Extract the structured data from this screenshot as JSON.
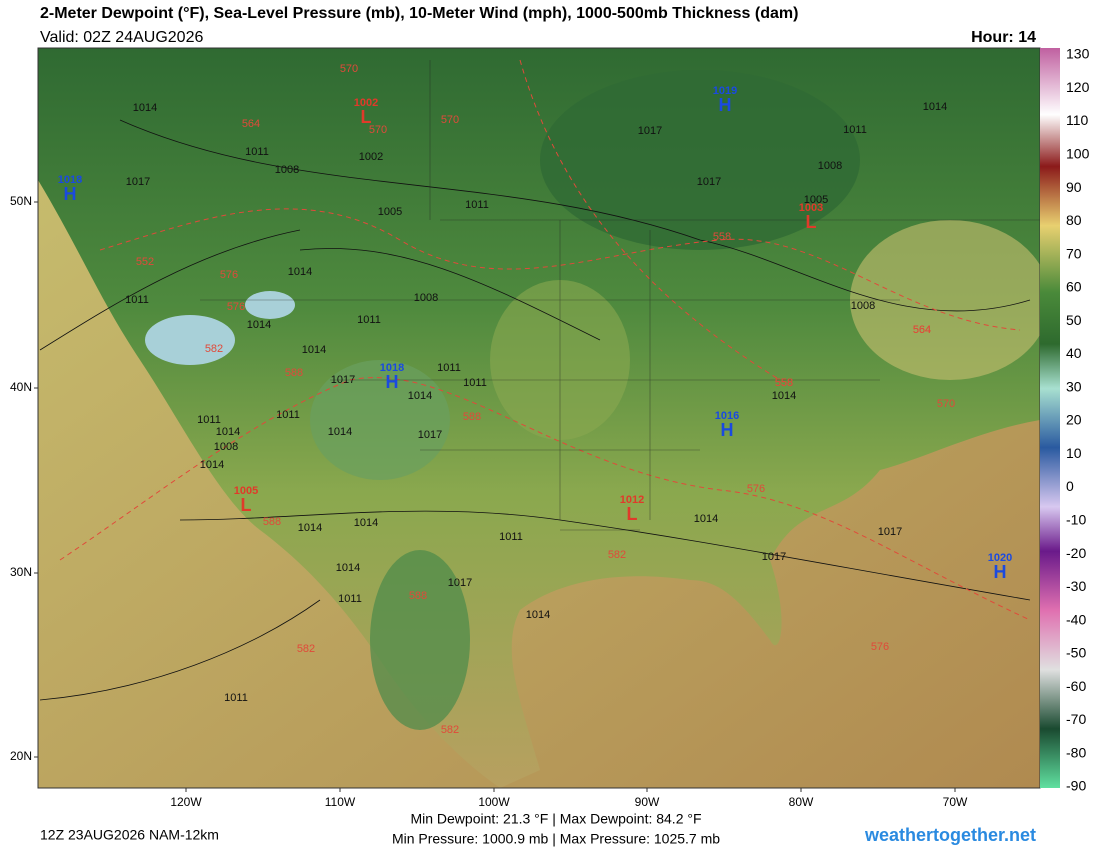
{
  "header": {
    "title": "2-Meter Dewpoint (°F), Sea-Level Pressure (mb), 10-Meter Wind (mph), 1000-500mb Thickness (dam)",
    "valid": "Valid: 02Z 24AUG2026",
    "hour": "Hour: 14"
  },
  "axes": {
    "lat": [
      "50N",
      "40N",
      "30N",
      "20N"
    ],
    "lon": [
      "120W",
      "110W",
      "100W",
      "90W",
      "80W",
      "70W"
    ]
  },
  "colorbar": {
    "ticks": [
      "130",
      "120",
      "110",
      "100",
      "90",
      "80",
      "70",
      "60",
      "50",
      "40",
      "30",
      "20",
      "10",
      "0",
      "-10",
      "-20",
      "-30",
      "-40",
      "-50",
      "-60",
      "-70",
      "-80",
      "-90"
    ]
  },
  "centers": [
    {
      "type": "H",
      "value": "1019"
    },
    {
      "type": "H",
      "value": "1018"
    },
    {
      "type": "H",
      "value": "1018"
    },
    {
      "type": "H",
      "value": "1016"
    },
    {
      "type": "H",
      "value": "1020"
    },
    {
      "type": "L",
      "value": "1002"
    },
    {
      "type": "L",
      "value": "1003"
    },
    {
      "type": "L",
      "value": "1005"
    },
    {
      "type": "L",
      "value": "1012"
    }
  ],
  "isobars": [
    "1014",
    "1011",
    "1008",
    "1017",
    "1002",
    "1005",
    "1011",
    "1017",
    "1017",
    "1014",
    "1011",
    "1008",
    "1005",
    "1014",
    "1011",
    "1014",
    "1008",
    "1011",
    "1011",
    "1014",
    "1017",
    "1011",
    "1011",
    "1008",
    "1014",
    "1008",
    "1014",
    "1011",
    "1014",
    "1017",
    "1014",
    "1014",
    "1017",
    "1014",
    "1017",
    "1011",
    "1014",
    "1014",
    "1014",
    "1011",
    "1017",
    "1014",
    "1011"
  ],
  "thickness": [
    "570",
    "564",
    "570",
    "570",
    "552",
    "564",
    "576",
    "576",
    "582",
    "588",
    "588",
    "558",
    "558",
    "564",
    "558",
    "570",
    "576",
    "588",
    "582",
    "588",
    "582",
    "582",
    "576"
  ],
  "footer": {
    "run": "12Z 23AUG2026 NAM-12km",
    "dewpoint": "Min Dewpoint:  21.3 °F | Max Dewpoint:  84.2 °F",
    "pressure": "Min Pressure: 1000.9 mb | Max Pressure: 1025.7 mb",
    "site": "weathertogether.net"
  }
}
